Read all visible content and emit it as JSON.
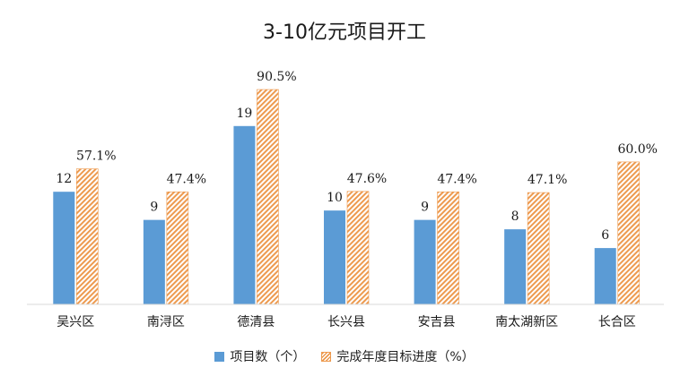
{
  "chart_data": {
    "type": "bar",
    "title": "3-10亿元项目开工",
    "categories": [
      "吴兴区",
      "南浔区",
      "德清县",
      "长兴县",
      "安吉县",
      "南太湖新区",
      "长合区"
    ],
    "series": [
      {
        "name": "项目数（个）",
        "color": "#5b9bd5",
        "values": [
          12,
          9,
          19,
          10,
          9,
          8,
          6
        ],
        "labels": [
          "12",
          "9",
          "19",
          "10",
          "9",
          "8",
          "6"
        ]
      },
      {
        "name": "完成年度目标进度（%）",
        "color": "#ed9a4f",
        "pattern": "diagonal-hatch",
        "values": [
          57.1,
          47.4,
          90.5,
          47.6,
          47.4,
          47.1,
          60.0
        ],
        "labels": [
          "57.1%",
          "47.4%",
          "90.5%",
          "47.6%",
          "47.4%",
          "47.1%",
          "60.0%"
        ]
      }
    ],
    "legend_position": "bottom",
    "grid": false,
    "axis_color": "#d9d9d9"
  }
}
